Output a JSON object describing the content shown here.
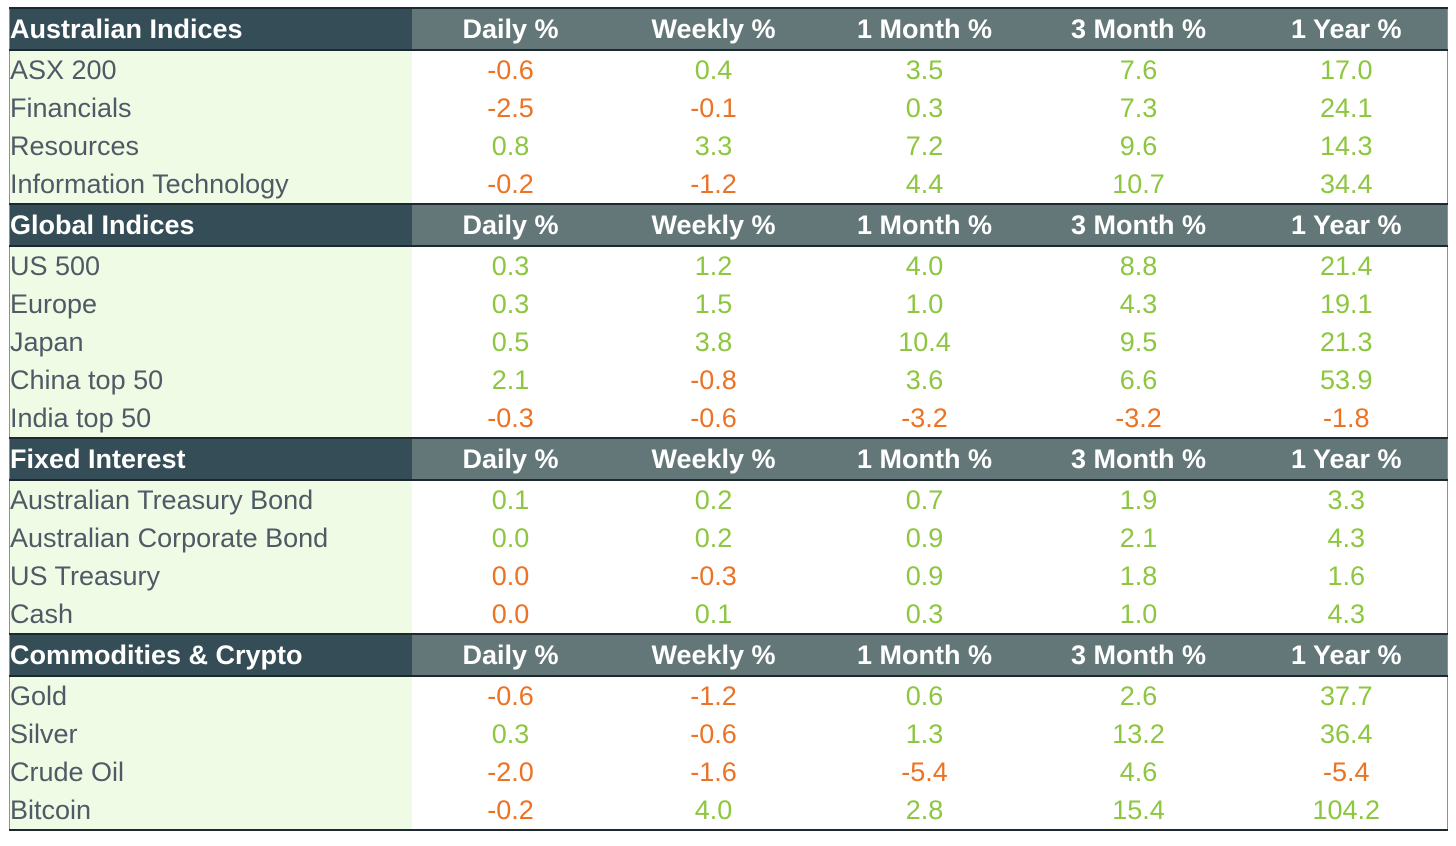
{
  "columns": [
    "Daily %",
    "Weekly %",
    "1 Month %",
    "3 Month %",
    "1 Year %"
  ],
  "colors": {
    "positive": "#8dc63f",
    "negative": "#ec7224",
    "section_header_bg": "#354d57",
    "column_header_bg": "#637779",
    "label_bg": "#f0fbe5"
  },
  "sections": [
    {
      "title": "Australian Indices",
      "rows": [
        {
          "name": "ASX 200",
          "values": [
            "-0.6",
            "0.4",
            "3.5",
            "7.6",
            "17.0"
          ]
        },
        {
          "name": "Financials",
          "values": [
            "-2.5",
            "-0.1",
            "0.3",
            "7.3",
            "24.1"
          ]
        },
        {
          "name": "Resources",
          "values": [
            "0.8",
            "3.3",
            "7.2",
            "9.6",
            "14.3"
          ]
        },
        {
          "name": "Information Technology",
          "values": [
            "-0.2",
            "-1.2",
            "4.4",
            "10.7",
            "34.4"
          ]
        }
      ]
    },
    {
      "title": "Global Indices",
      "rows": [
        {
          "name": "US 500",
          "values": [
            "0.3",
            "1.2",
            "4.0",
            "8.8",
            "21.4"
          ]
        },
        {
          "name": "Europe",
          "values": [
            "0.3",
            "1.5",
            "1.0",
            "4.3",
            "19.1"
          ]
        },
        {
          "name": "Japan",
          "values": [
            "0.5",
            "3.8",
            "10.4",
            "9.5",
            "21.3"
          ]
        },
        {
          "name": "China top 50",
          "values": [
            "2.1",
            "-0.8",
            "3.6",
            "6.6",
            "53.9"
          ]
        },
        {
          "name": "India top 50",
          "values": [
            "-0.3",
            "-0.6",
            "-3.2",
            "-3.2",
            "-1.8"
          ]
        }
      ]
    },
    {
      "title": "Fixed Interest",
      "rows": [
        {
          "name": "Australian Treasury Bond",
          "values": [
            "0.1",
            "0.2",
            "0.7",
            "1.9",
            "3.3"
          ]
        },
        {
          "name": "Australian Corporate Bond",
          "values": [
            "0.0",
            "0.2",
            "0.9",
            "2.1",
            "4.3"
          ]
        },
        {
          "name": "US Treasury",
          "values": [
            "0.0",
            "-0.3",
            "0.9",
            "1.8",
            "1.6"
          ]
        },
        {
          "name": "Cash",
          "values": [
            "0.0",
            "0.1",
            "0.3",
            "1.0",
            "4.3"
          ]
        }
      ]
    },
    {
      "title": "Commodities & Crypto",
      "rows": [
        {
          "name": "Gold",
          "values": [
            "-0.6",
            "-1.2",
            "0.6",
            "2.6",
            "37.7"
          ]
        },
        {
          "name": "Silver",
          "values": [
            "0.3",
            "-0.6",
            "1.3",
            "13.2",
            "36.4"
          ]
        },
        {
          "name": "Crude Oil",
          "values": [
            "-2.0",
            "-1.6",
            "-5.4",
            "4.6",
            "-5.4"
          ]
        },
        {
          "name": "Bitcoin",
          "values": [
            "-0.2",
            "4.0",
            "2.8",
            "15.4",
            "104.2"
          ]
        }
      ]
    }
  ],
  "negative_cells": [
    [
      [
        0,
        0
      ],
      [
        1,
        0
      ],
      [
        1,
        1
      ],
      [
        3,
        0
      ],
      [
        3,
        1
      ]
    ],
    [
      [
        4,
        0
      ],
      [
        4,
        1
      ],
      [
        4,
        2
      ],
      [
        4,
        3
      ],
      [
        4,
        4
      ],
      [
        3,
        1
      ]
    ],
    [
      [
        2,
        0
      ],
      [
        3,
        0
      ],
      [
        2,
        1
      ]
    ],
    [
      [
        0,
        0
      ],
      [
        0,
        1
      ],
      [
        1,
        1
      ],
      [
        2,
        0
      ],
      [
        2,
        1
      ],
      [
        2,
        2
      ],
      [
        2,
        4
      ],
      [
        3,
        0
      ]
    ]
  ]
}
